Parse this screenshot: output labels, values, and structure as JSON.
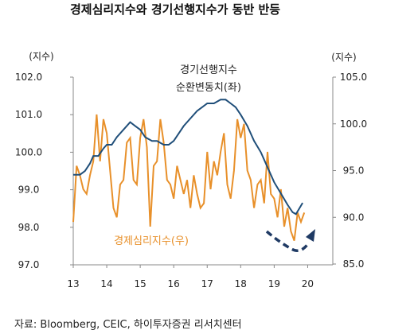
{
  "chart_data": {
    "type": "line",
    "title": "경제심리지수와 경기선행지수가 동반 반등",
    "left_axis": {
      "unit_label": "(지수)",
      "ylim": [
        97.0,
        102.0
      ],
      "ticks": [
        "102.0",
        "101.0",
        "100.0",
        "99.0",
        "98.0",
        "97.0"
      ]
    },
    "right_axis": {
      "unit_label": "(지수)",
      "ylim": [
        85.0,
        105.0
      ],
      "ticks": [
        "105.0",
        "100.0",
        "95.0",
        "90.0",
        "85.0"
      ]
    },
    "x_axis": {
      "xlim": [
        2013.0,
        2020.75
      ],
      "ticks": [
        "13",
        "14",
        "15",
        "16",
        "17",
        "18",
        "19",
        "20"
      ]
    },
    "series": [
      {
        "name": "경기선행지수 순환변동치(좌)",
        "label_lines": [
          "경기선행지수",
          "순환변동치(좌)"
        ],
        "axis": "left",
        "color": "#1f4e79",
        "x": [
          2013.0,
          2013.2,
          2013.35,
          2013.5,
          2013.6,
          2013.75,
          2013.9,
          2014.0,
          2014.15,
          2014.3,
          2014.5,
          2014.7,
          2014.85,
          2015.0,
          2015.15,
          2015.35,
          2015.5,
          2015.7,
          2015.85,
          2016.0,
          2016.15,
          2016.3,
          2016.5,
          2016.7,
          2016.85,
          2017.0,
          2017.2,
          2017.4,
          2017.55,
          2017.7,
          2017.85,
          2018.0,
          2018.2,
          2018.4,
          2018.6,
          2018.8,
          2019.0,
          2019.2,
          2019.4,
          2019.55,
          2019.65,
          2019.75,
          2019.85
        ],
        "values": [
          99.4,
          99.4,
          99.5,
          99.7,
          99.9,
          99.9,
          100.1,
          100.2,
          100.2,
          100.4,
          100.6,
          100.8,
          100.7,
          100.6,
          100.4,
          100.3,
          100.3,
          100.2,
          100.2,
          100.3,
          100.5,
          100.7,
          100.9,
          101.1,
          101.2,
          101.3,
          101.3,
          101.4,
          101.4,
          101.3,
          101.2,
          101.0,
          100.7,
          100.3,
          100.0,
          99.6,
          99.2,
          98.9,
          98.6,
          98.4,
          98.35,
          98.5,
          98.65
        ]
      },
      {
        "name": "경제심리지수(우)",
        "axis": "right",
        "color": "#e8902a",
        "x": [
          2013.0,
          2013.1,
          2013.2,
          2013.3,
          2013.4,
          2013.5,
          2013.6,
          2013.7,
          2013.8,
          2013.9,
          2014.0,
          2014.1,
          2014.2,
          2014.3,
          2014.4,
          2014.5,
          2014.6,
          2014.7,
          2014.8,
          2014.9,
          2015.0,
          2015.1,
          2015.2,
          2015.3,
          2015.4,
          2015.5,
          2015.6,
          2015.7,
          2015.8,
          2015.9,
          2016.0,
          2016.1,
          2016.2,
          2016.3,
          2016.4,
          2016.5,
          2016.6,
          2016.7,
          2016.8,
          2016.9,
          2017.0,
          2017.1,
          2017.2,
          2017.3,
          2017.4,
          2017.5,
          2017.6,
          2017.7,
          2017.8,
          2017.9,
          2018.0,
          2018.1,
          2018.2,
          2018.3,
          2018.4,
          2018.5,
          2018.6,
          2018.7,
          2018.8,
          2018.9,
          2019.0,
          2019.1,
          2019.2,
          2019.3,
          2019.4,
          2019.5,
          2019.6,
          2019.7,
          2019.8,
          2019.9
        ],
        "values": [
          89.5,
          95.5,
          94.5,
          93.0,
          92.5,
          94.5,
          96.0,
          101.0,
          96.0,
          100.5,
          99.0,
          95.0,
          91.0,
          90.0,
          93.5,
          94.0,
          98.0,
          98.5,
          94.0,
          93.5,
          98.5,
          100.5,
          97.5,
          89.0,
          95.5,
          96.0,
          100.5,
          98.0,
          94.0,
          93.5,
          92.0,
          95.5,
          94.0,
          92.5,
          94.0,
          91.0,
          94.5,
          92.5,
          91.0,
          91.5,
          97.0,
          93.0,
          96.0,
          94.5,
          97.0,
          99.0,
          93.5,
          92.0,
          95.0,
          100.5,
          98.5,
          100.0,
          95.0,
          94.0,
          91.0,
          93.5,
          94.0,
          91.5,
          97.0,
          92.5,
          92.0,
          90.0,
          93.0,
          89.0,
          91.0,
          88.5,
          87.5,
          90.5,
          89.5,
          90.5
        ]
      }
    ],
    "annotation_label": "경제심리지수(우)",
    "source": "자료: Bloomberg, CEIC,  하이투자증권  리서치센터",
    "grid": false
  }
}
